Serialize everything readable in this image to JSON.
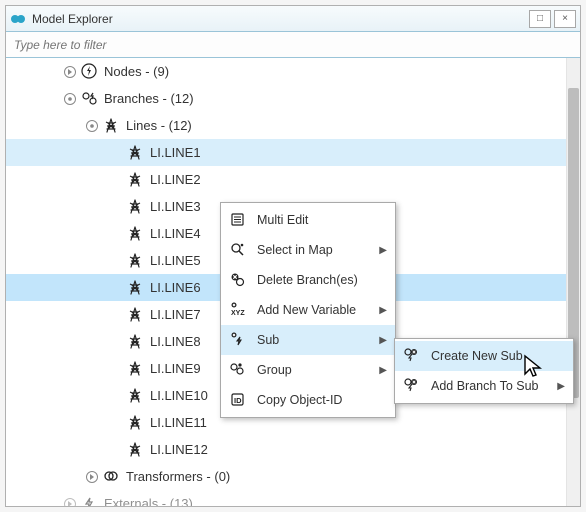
{
  "window": {
    "title": "Model Explorer"
  },
  "filter": {
    "placeholder": "Type here to filter"
  },
  "tree": {
    "nodes": {
      "label": "Nodes - (9)"
    },
    "branches": {
      "label": "Branches - (12)"
    },
    "lines": {
      "label": "Lines - (12)"
    },
    "line_items": [
      "LI.LINE1",
      "LI.LINE2",
      "LI.LINE3",
      "LI.LINE4",
      "LI.LINE5",
      "LI.LINE6",
      "LI.LINE7",
      "LI.LINE8",
      "LI.LINE9",
      "LI.LINE10",
      "LI.LINE11",
      "LI.LINE12"
    ],
    "transformers": {
      "label": "Transformers - (0)"
    },
    "externals": {
      "label": "Externals - (13)"
    }
  },
  "menu": {
    "multi_edit": "Multi Edit",
    "select_map": "Select in Map",
    "delete": "Delete Branch(es)",
    "add_var": "Add New Variable",
    "sub": "Sub",
    "group": "Group",
    "copy_id": "Copy Object-ID"
  },
  "submenu": {
    "create_sub": "Create New Sub",
    "add_branch": "Add Branch To Sub"
  },
  "colors": {
    "highlight1": "#d8eefb",
    "highlight2": "#c2e5fb",
    "titlebar_border": "#9ac4d8",
    "scroll_thumb": "#bdbdbd"
  }
}
